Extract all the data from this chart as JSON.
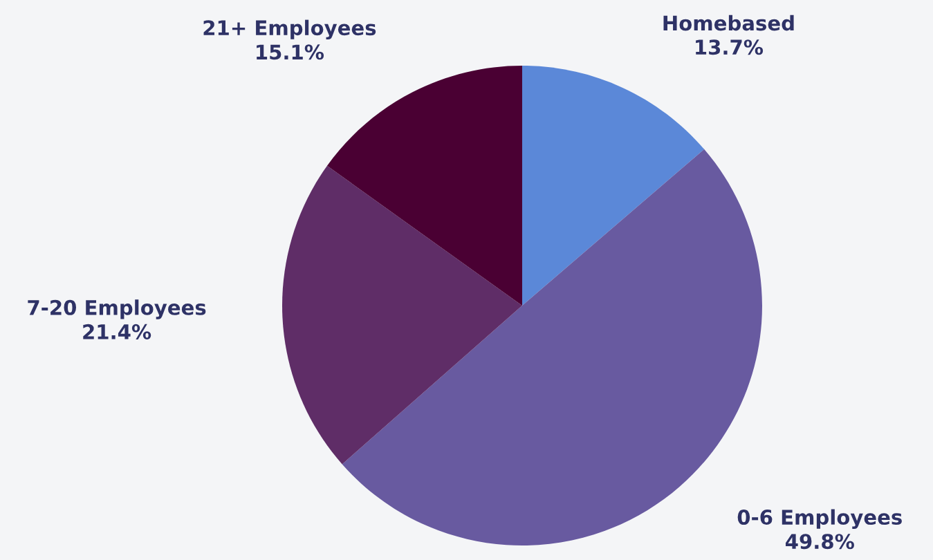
{
  "chart_data": {
    "type": "pie",
    "categories": [
      "Homebased",
      "0-6 Employees",
      "7-20 Employees",
      "21+ Employees"
    ],
    "values": [
      13.7,
      49.8,
      21.4,
      15.1
    ],
    "value_labels": [
      "13.7%",
      "49.8%",
      "21.4%",
      "15.1%"
    ],
    "colors": [
      "#5b88d8",
      "#685aa0",
      "#5f2d67",
      "#4a0033"
    ]
  }
}
